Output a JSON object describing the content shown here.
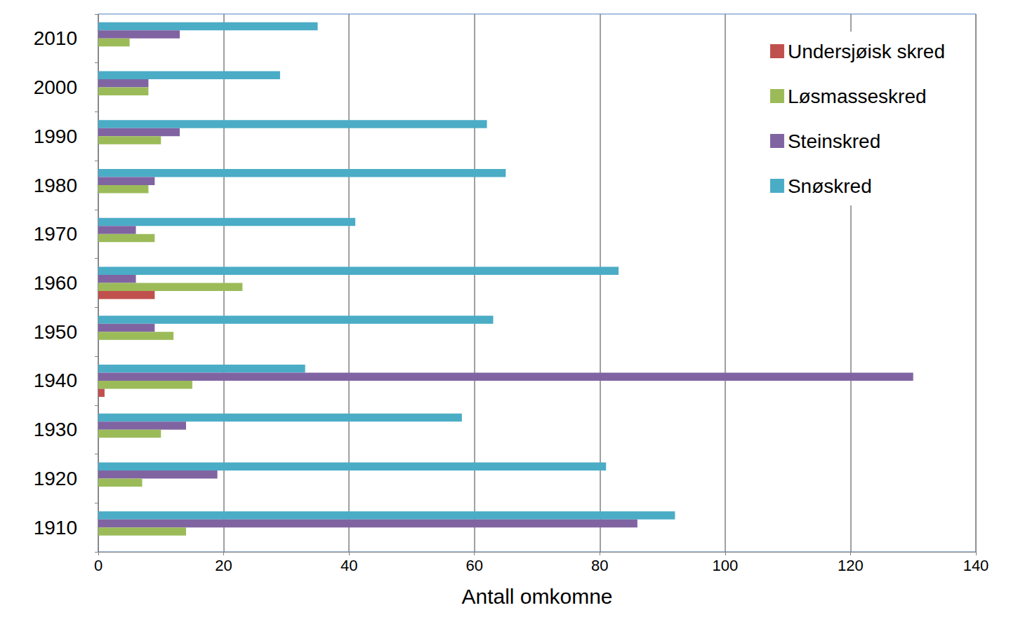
{
  "chart_data": {
    "type": "bar",
    "orientation": "horizontal",
    "x_label": "Antall omkomne",
    "categories": [
      "1910",
      "1920",
      "1930",
      "1940",
      "1950",
      "1960",
      "1970",
      "1980",
      "1990",
      "2000",
      "2010"
    ],
    "series": [
      {
        "name": "Undersjøisk skred",
        "color": "#c0504d",
        "values": [
          0,
          0,
          0,
          1,
          0,
          9,
          0,
          0,
          0,
          0,
          0
        ]
      },
      {
        "name": "Løsmasseskred",
        "color": "#9bbb59",
        "values": [
          14,
          7,
          10,
          15,
          12,
          23,
          9,
          8,
          10,
          8,
          5
        ]
      },
      {
        "name": "Steinskred",
        "color": "#8064a2",
        "values": [
          86,
          19,
          14,
          130,
          9,
          6,
          6,
          9,
          13,
          8,
          13
        ]
      },
      {
        "name": "Snøskred",
        "color": "#4bacc6",
        "values": [
          92,
          81,
          58,
          33,
          63,
          83,
          41,
          65,
          62,
          29,
          35
        ]
      }
    ],
    "xlim": [
      0,
      140
    ],
    "xticks": [
      0,
      20,
      40,
      60,
      80,
      100,
      120,
      140
    ],
    "grid": true,
    "legend": "upper right"
  }
}
